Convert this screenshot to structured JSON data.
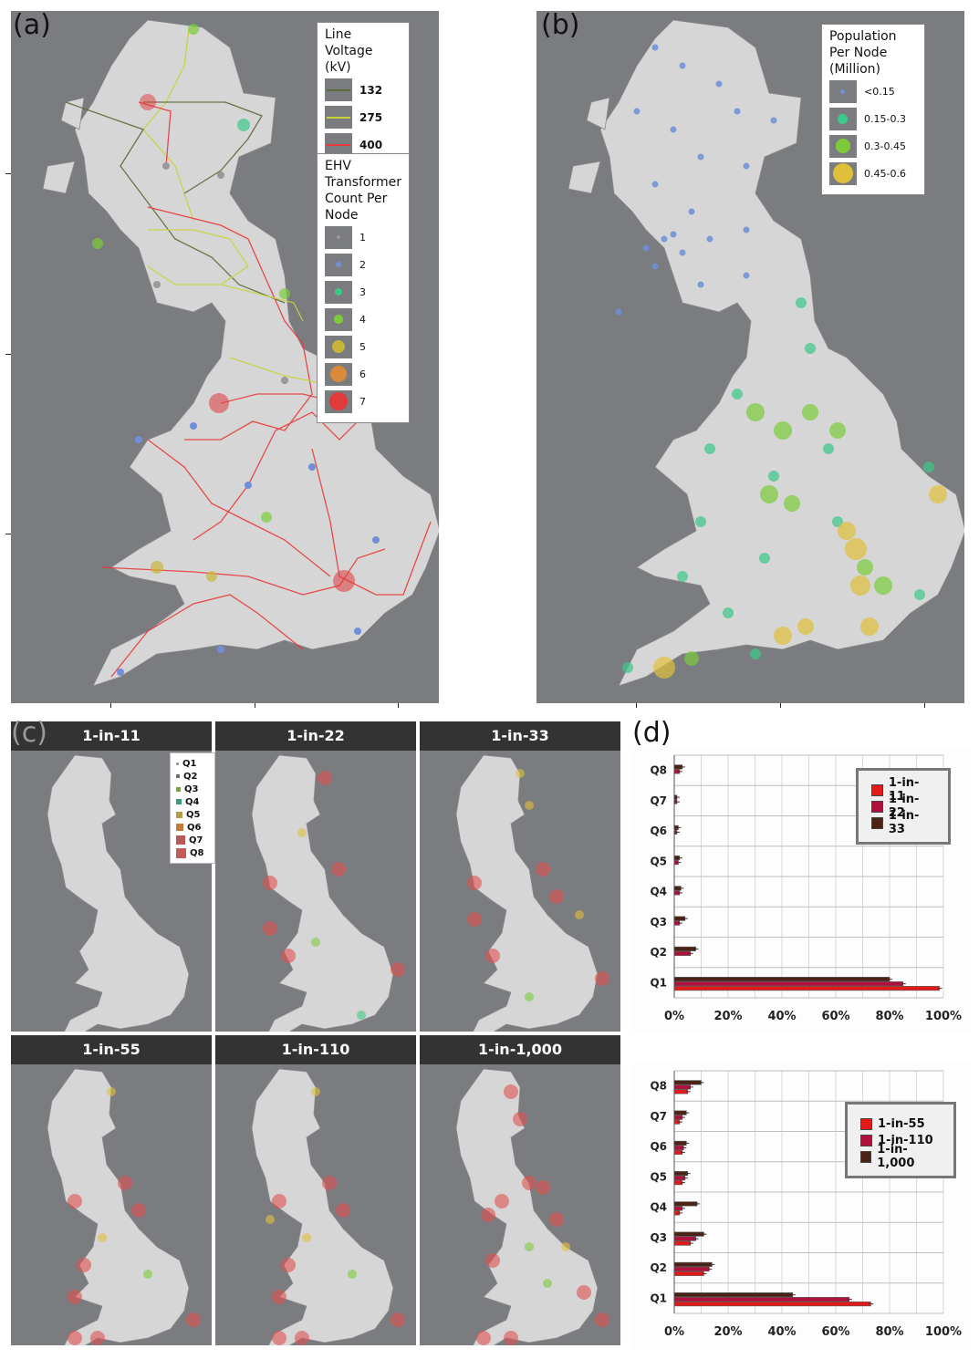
{
  "panel_a": {
    "label": "(a)",
    "voltage_legend": {
      "title_lines": [
        "Line",
        "Voltage",
        "(kV)"
      ],
      "items": [
        {
          "label": "132",
          "color": "#5a6b3a"
        },
        {
          "label": "275",
          "color": "#c8d43a"
        },
        {
          "label": "400",
          "color": "#e83a3a"
        }
      ]
    },
    "ehv_legend": {
      "title_lines": [
        "EHV",
        "Transformer",
        "Count Per",
        "Node"
      ],
      "items": [
        {
          "label": "1",
          "color": "#9a9a9a"
        },
        {
          "label": "2",
          "color": "#6f8fd8"
        },
        {
          "label": "3",
          "color": "#3cc98a"
        },
        {
          "label": "4",
          "color": "#7ccc3a"
        },
        {
          "label": "5",
          "color": "#c9b43a"
        },
        {
          "label": "6",
          "color": "#d88a3a"
        },
        {
          "label": "7",
          "color": "#e03a3a"
        }
      ]
    }
  },
  "panel_b": {
    "label": "(b)",
    "legend": {
      "title_lines": [
        "Population",
        "Per Node",
        "(Million)"
      ],
      "items": [
        {
          "label": "<0.15",
          "color": "#6f8fd8"
        },
        {
          "label": "0.15-0.3",
          "color": "#3cc98a"
        },
        {
          "label": "0.3-0.45",
          "color": "#7ccc3a"
        },
        {
          "label": "0.45-0.6",
          "color": "#e0c03a"
        }
      ]
    }
  },
  "panel_c": {
    "label": "(c)",
    "tiles": [
      "1-in-11",
      "1-in-22",
      "1-in-33",
      "1-in-55",
      "1-in-110",
      "1-in-1,000"
    ],
    "legend": [
      {
        "label": "Q1",
        "color": "#9a9a9a"
      },
      {
        "label": "Q2",
        "color": "#707070"
      },
      {
        "label": "Q3",
        "color": "#6aa83a"
      },
      {
        "label": "Q4",
        "color": "#3a9a7a"
      },
      {
        "label": "Q5",
        "color": "#b4a03a"
      },
      {
        "label": "Q6",
        "color": "#c47a3a"
      },
      {
        "label": "Q7",
        "color": "#b85a5a"
      },
      {
        "label": "Q8",
        "color": "#c45a5a"
      }
    ]
  },
  "panel_d": {
    "label": "(d)",
    "chart_data": [
      {
        "type": "bar",
        "orientation": "horizontal",
        "categories": [
          "Q8",
          "Q7",
          "Q6",
          "Q5",
          "Q4",
          "Q3",
          "Q2",
          "Q1"
        ],
        "xticks": [
          "0%",
          "20%",
          "40%",
          "60%",
          "80%",
          "100%"
        ],
        "xlim": [
          0,
          100
        ],
        "grid": true,
        "legend_position": "top-right",
        "series": [
          {
            "name": "1-in-11",
            "color": "#e21a1a",
            "values": [
              0,
              0,
              0,
              0,
              0,
              0,
              0,
              98.5
            ]
          },
          {
            "name": "1-in-22",
            "color": "#b0103c",
            "values": [
              2,
              1,
              1,
              1.5,
              2,
              2,
              6,
              85
            ]
          },
          {
            "name": "1-in-33",
            "color": "#4a2216",
            "values": [
              3,
              1,
              1.5,
              2,
              2.5,
              4,
              8,
              80
            ]
          }
        ]
      },
      {
        "type": "bar",
        "orientation": "horizontal",
        "categories": [
          "Q8",
          "Q7",
          "Q6",
          "Q5",
          "Q4",
          "Q3",
          "Q2",
          "Q1"
        ],
        "xticks": [
          "0%",
          "20%",
          "40%",
          "60%",
          "80%",
          "100%"
        ],
        "xlim": [
          0,
          100
        ],
        "grid": true,
        "legend_position": "top-right",
        "series": [
          {
            "name": "1-in-55",
            "color": "#e21a1a",
            "values": [
              5,
              2,
              3,
              3,
              2,
              6,
              11,
              73
            ]
          },
          {
            "name": "1-in-110",
            "color": "#b0103c",
            "values": [
              6,
              3,
              3.5,
              4,
              3,
              8,
              13,
              65
            ]
          },
          {
            "name": "1-in-1,000",
            "color": "#4a2216",
            "values": [
              10,
              4.5,
              4.5,
              5,
              8.5,
              11,
              14,
              44
            ]
          }
        ]
      }
    ]
  }
}
